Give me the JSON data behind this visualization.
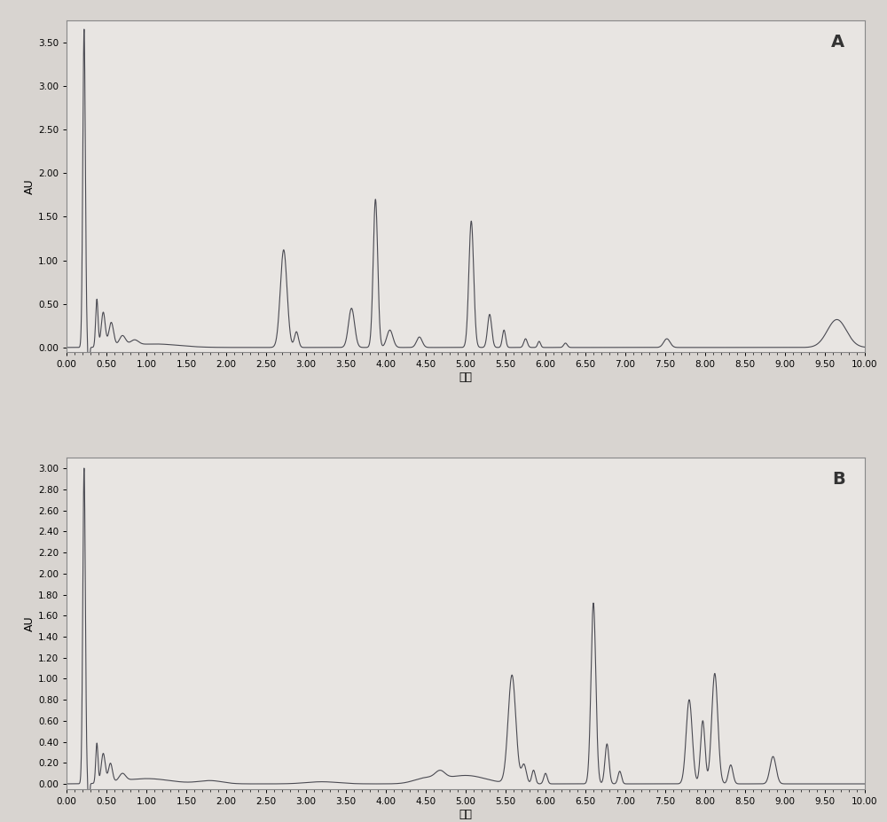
{
  "background_color": "#d8d4d0",
  "plot_bg_color": "#e8e5e2",
  "outer_bg": "#c8c4c0",
  "line_color_A": "#4a4a52",
  "line_color_B": "#4a4a52",
  "xlabel": "分钟",
  "ylabel": "AU",
  "label_A": "A",
  "label_B": "B",
  "xlim": [
    0,
    10
  ],
  "ylim_A": [
    -0.05,
    3.75
  ],
  "ylim_B": [
    -0.05,
    3.1
  ],
  "xticks": [
    0.0,
    0.5,
    1.0,
    1.5,
    2.0,
    2.5,
    3.0,
    3.5,
    4.0,
    4.5,
    5.0,
    5.5,
    6.0,
    6.5,
    7.0,
    7.5,
    8.0,
    8.5,
    9.0,
    9.5,
    10.0
  ],
  "yticks_A": [
    0.0,
    0.5,
    1.0,
    1.5,
    2.0,
    2.5,
    3.0,
    3.5
  ],
  "yticks_B": [
    0.0,
    0.2,
    0.4,
    0.6,
    0.8,
    1.0,
    1.2,
    1.4,
    1.6,
    1.8,
    2.0,
    2.2,
    2.4,
    2.6,
    2.8,
    3.0
  ],
  "tick_label_fontsize": 7.5,
  "axis_label_fontsize": 9,
  "panel_label_fontsize": 14,
  "linewidth": 0.8
}
